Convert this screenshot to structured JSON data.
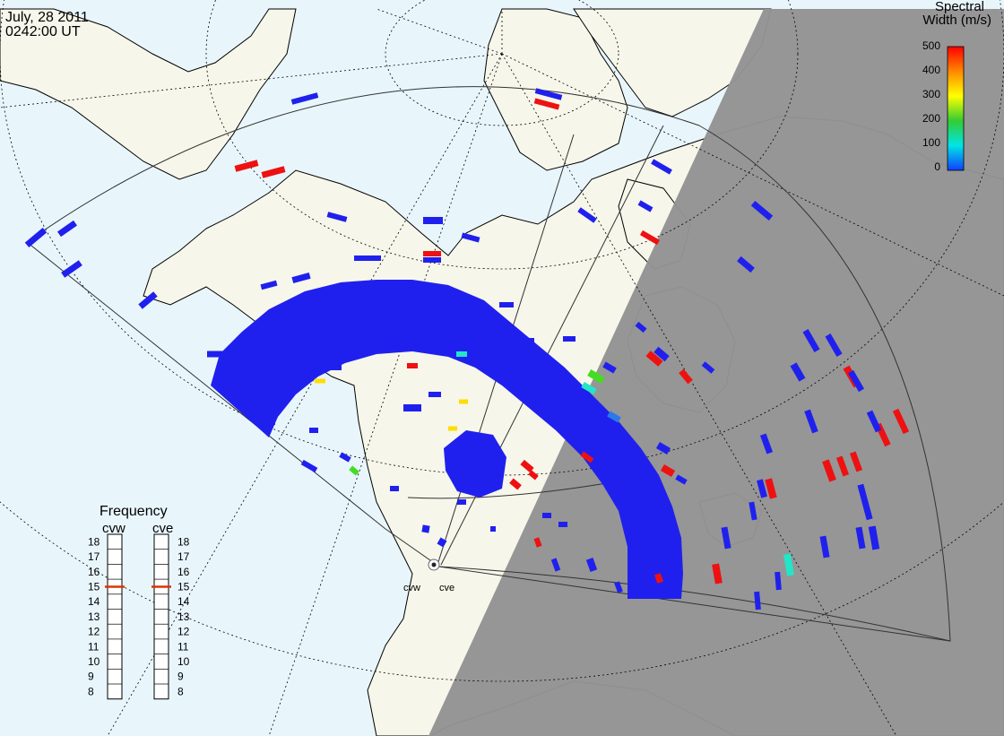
{
  "header": {
    "date": "July, 28 2011",
    "time": "0242:00 UT"
  },
  "colorbar": {
    "title_line1": "Spectral",
    "title_line2": "Width (m/s)",
    "ticks": [
      "500",
      "400",
      "300",
      "200",
      "100",
      "0"
    ],
    "stops": [
      "#ff0000",
      "#ff8800",
      "#ffff00",
      "#33cc33",
      "#00e5e5",
      "#1040ff"
    ]
  },
  "frequency_panel": {
    "title": "Frequency",
    "radars": [
      "cvw",
      "cve"
    ],
    "levels": [
      "18",
      "17",
      "16",
      "15",
      "14",
      "13",
      "12",
      "11",
      "10",
      "9",
      "8"
    ],
    "cvw_freq": 15,
    "cve_freq": 15,
    "marker_color": "#dd3300"
  },
  "map": {
    "ocean_color": "#e8f6fc",
    "land_color": "#f6f6ea",
    "night_color": "#939393",
    "scatter_color": "#2020ee",
    "radar_sites": [
      "cvw",
      "cve"
    ]
  }
}
